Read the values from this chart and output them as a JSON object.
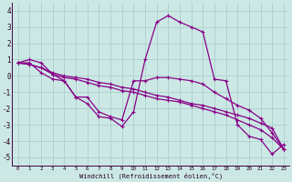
{
  "xlabel": "Windchill (Refroidissement éolien,°C)",
  "background_color": "#cce8e5",
  "grid_color": "#aacfcc",
  "line_color": "#880088",
  "xlim": [
    -0.5,
    23.5
  ],
  "ylim": [
    -5.5,
    4.5
  ],
  "xticks": [
    0,
    1,
    2,
    3,
    4,
    5,
    6,
    7,
    8,
    9,
    10,
    11,
    12,
    13,
    14,
    15,
    16,
    17,
    18,
    19,
    20,
    21,
    22,
    23
  ],
  "yticks": [
    -5,
    -4,
    -3,
    -2,
    -1,
    0,
    1,
    2,
    3,
    4
  ],
  "series": [
    [
      0.8,
      1.0,
      0.8,
      0.1,
      -0.3,
      -1.3,
      -1.7,
      -2.5,
      -2.6,
      -3.1,
      -2.2,
      1.0,
      3.3,
      3.7,
      3.3,
      3.0,
      2.7,
      -0.2,
      -0.3,
      -3.0,
      -3.7,
      -3.9,
      -4.8,
      -4.2
    ],
    [
      0.8,
      0.7,
      0.5,
      0.2,
      0.0,
      -0.1,
      -0.2,
      -0.4,
      -0.5,
      -0.7,
      -0.8,
      -1.0,
      -1.2,
      -1.3,
      -1.5,
      -1.7,
      -1.8,
      -2.0,
      -2.2,
      -2.4,
      -2.6,
      -2.9,
      -3.2,
      -4.5
    ],
    [
      0.8,
      0.7,
      0.5,
      0.1,
      -0.1,
      -0.2,
      -0.4,
      -0.6,
      -0.7,
      -0.9,
      -1.0,
      -1.2,
      -1.4,
      -1.5,
      -1.6,
      -1.8,
      -2.0,
      -2.2,
      -2.4,
      -2.7,
      -3.0,
      -3.3,
      -3.8,
      -4.5
    ],
    [
      0.8,
      0.8,
      0.2,
      -0.2,
      -0.3,
      -1.3,
      -1.3,
      -2.2,
      -2.5,
      -2.7,
      -0.3,
      -0.3,
      -0.1,
      -0.1,
      -0.2,
      -0.3,
      -0.5,
      -1.0,
      -1.4,
      -1.8,
      -2.1,
      -2.6,
      -3.5,
      -4.5
    ]
  ],
  "figsize": [
    3.2,
    2.0
  ],
  "dpi": 100
}
